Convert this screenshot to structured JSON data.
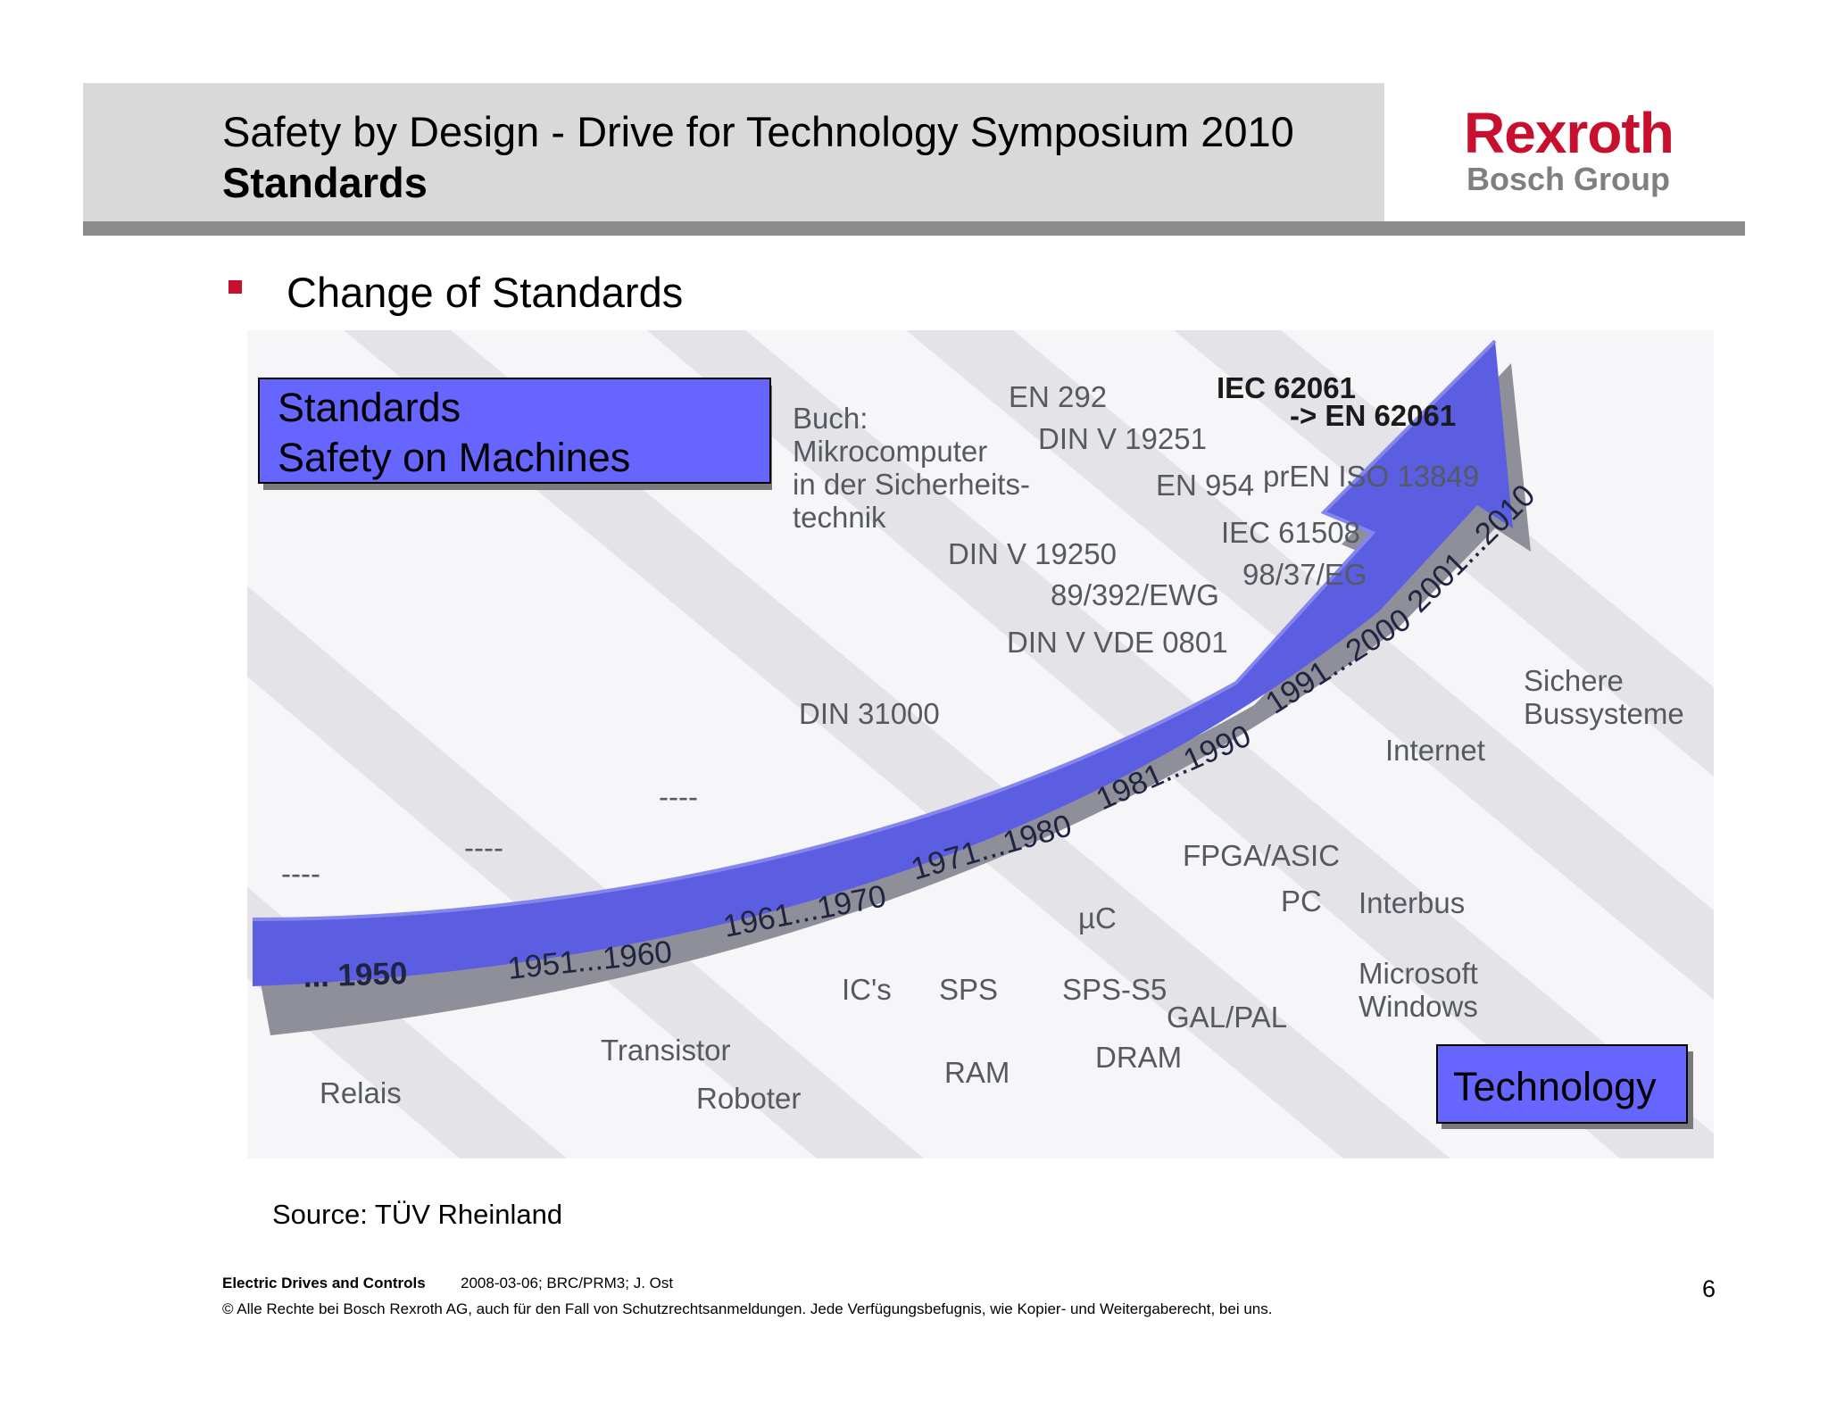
{
  "header": {
    "title": "Safety by Design - Drive for Technology Symposium 2010",
    "subtitle": "Standards"
  },
  "logo": {
    "brand": "Rexroth",
    "group": "Bosch Group",
    "brand_color": "#c8102e"
  },
  "bullet": {
    "text": "Change of Standards",
    "color": "#c8102e"
  },
  "diagram": {
    "box_standards": {
      "line1": "Standards",
      "line2": "Safety on Machines"
    },
    "box_technology": "Technology",
    "box_color": "#6666ff",
    "arrow_color": "#5b5ee0",
    "years": [
      "... 1950",
      "1951...1960",
      "1961...1970",
      "1971...1980",
      "1981...1990",
      "1991...2000",
      "2001...2010"
    ],
    "standards_labels": {
      "dash1": "----",
      "dash2": "----",
      "dash3": "----",
      "din31000": "DIN 31000",
      "buch1": "Buch:",
      "buch2": "Mikrocomputer",
      "buch3": "in der Sicherheits-",
      "buch4": "technik",
      "en292": "EN 292",
      "dinv19251": "DIN V 19251",
      "en954": "EN 954",
      "dinv19250": "DIN V 19250",
      "ewg": "89/392/EWG",
      "dinvde": "DIN V VDE 0801",
      "iec62061": "IEC 62061",
      "en62061": "-> EN 62061",
      "preniso": "prEN ISO 13849",
      "iec61508": "IEC 61508",
      "eg": "98/37/EG"
    },
    "technology_labels": {
      "relais": "Relais",
      "transistor": "Transistor",
      "roboter": "Roboter",
      "ics": "IC's",
      "sps": "SPS",
      "ram": "RAM",
      "uc": "µC",
      "spss5": "SPS-S5",
      "dram": "DRAM",
      "galpal": "GAL/PAL",
      "fpga": "FPGA/ASIC",
      "pc": "PC",
      "interbus": "Interbus",
      "ms1": "Microsoft",
      "ms2": "Windows",
      "internet": "Internet",
      "sichere1": "Sichere",
      "sichere2": "Bussysteme"
    }
  },
  "source": "Source: TÜV Rheinland",
  "footer": {
    "company": "Electric Drives and Controls",
    "meta": "2008-03-06; BRC/PRM3; J. Ost",
    "copyright": "© Alle Rechte bei Bosch Rexroth AG, auch für den Fall von Schutzrechtsanmeldungen. Jede Verfügungsbefugnis, wie Kopier- und Weitergaberecht, bei uns.",
    "page": "6"
  }
}
